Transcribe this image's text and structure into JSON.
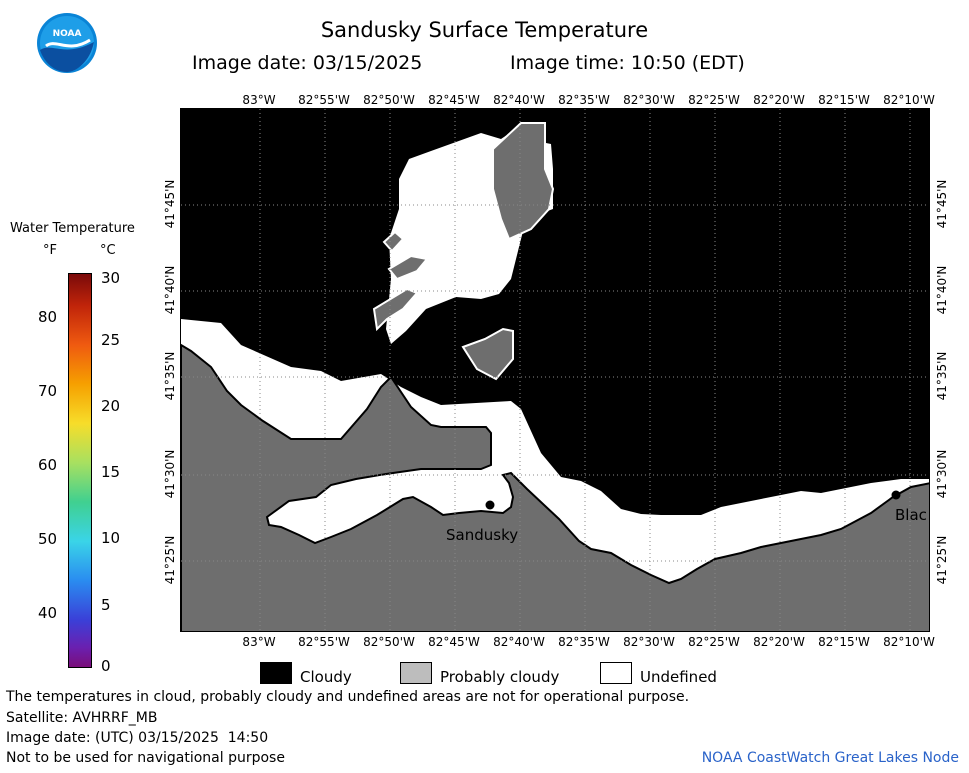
{
  "title": "Sandusky Surface Temperature",
  "image_date_label": "Image date: 03/15/2025",
  "image_time_label": "Image time: 10:50 (EDT)",
  "longitude_ticks": [
    "83°W",
    "82°55'W",
    "82°50'W",
    "82°45'W",
    "82°40'W",
    "82°35'W",
    "82°30'W",
    "82°25'W",
    "82°20'W",
    "82°15'W",
    "82°10'W"
  ],
  "latitude_ticks": [
    "41°45'N",
    "41°40'N",
    "41°35'N",
    "41°30'N",
    "41°25'N"
  ],
  "legend": {
    "title": "Water Temperature",
    "unit_f": "°F",
    "unit_c": "°C",
    "f_ticks": [
      "80",
      "70",
      "60",
      "50",
      "40"
    ],
    "c_ticks": [
      "30",
      "25",
      "20",
      "15",
      "10",
      "5",
      "0"
    ]
  },
  "cities": [
    "Sandusky",
    "Blac"
  ],
  "key": {
    "cloudy": "Cloudy",
    "probably_cloudy": "Probably cloudy",
    "undefined": "Undefined"
  },
  "footer": {
    "disclaimer": "The temperatures in cloud, probably cloudy and undefined areas are not for operational purpose.",
    "satellite": "Satellite: AVHRRF_MB",
    "utc_date": "Image date: (UTC) 03/15/2025  14:50",
    "nav_warning": "Not to be used for navigational purpose",
    "credit": "NOAA CoastWatch Great Lakes Node"
  },
  "logo_text": "NOAA",
  "colors": {
    "cloudy": "#000000",
    "probably_cloudy": "#6e6e6e",
    "undefined": "#ffffff",
    "credit": "#2a63c9"
  }
}
